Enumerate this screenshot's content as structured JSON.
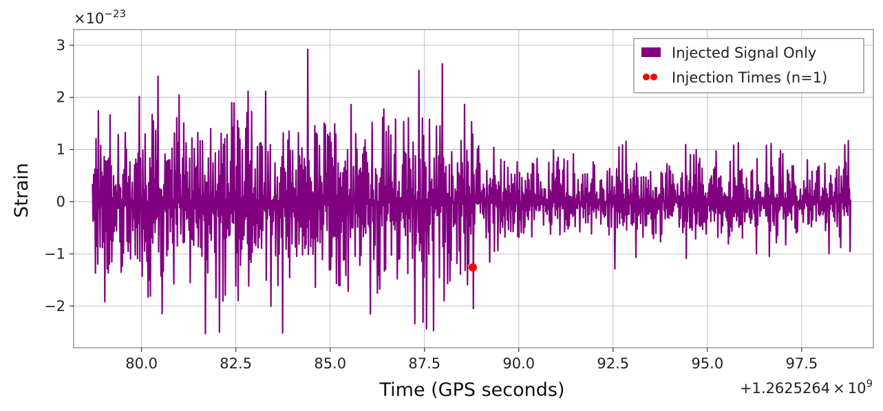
{
  "chart_data": {
    "type": "line",
    "xlabel": "Time (GPS seconds)",
    "ylabel": "Strain",
    "x_offset_label": "+1.2625264",
    "x_offset_exp_label": "9",
    "y_multiplier_label": "×10",
    "y_multiplier_exp_label": "−23",
    "xlim": [
      78.2,
      99.4
    ],
    "ylim": [
      -2.8,
      3.3
    ],
    "x_ticks": [
      80.0,
      82.5,
      85.0,
      87.5,
      90.0,
      92.5,
      95.0,
      97.5
    ],
    "x_tick_labels": [
      "80.0",
      "82.5",
      "85.0",
      "87.5",
      "90.0",
      "92.5",
      "95.0",
      "97.5"
    ],
    "y_ticks": [
      -2,
      -1,
      0,
      1,
      2,
      3
    ],
    "y_tick_labels": [
      "−2",
      "−1",
      "0",
      "1",
      "2",
      "3"
    ],
    "grid": true,
    "legend_position": "top-right",
    "series": [
      {
        "name": "Injected Signal Only",
        "color": "#800080",
        "kind": "line",
        "x_start": 78.7,
        "x_end": 98.8,
        "segments": [
          {
            "x_from": 78.7,
            "x_to": 88.8,
            "envelope_max": 3.0,
            "envelope_min": -2.55
          },
          {
            "x_from": 88.8,
            "x_to": 98.8,
            "envelope_max": 1.43,
            "envelope_min": -1.35
          }
        ]
      },
      {
        "name": "Injection Times (n=1)",
        "color": "#ff0000",
        "kind": "scatter",
        "points": [
          {
            "x": 88.78,
            "y": -1.26
          }
        ]
      }
    ]
  }
}
